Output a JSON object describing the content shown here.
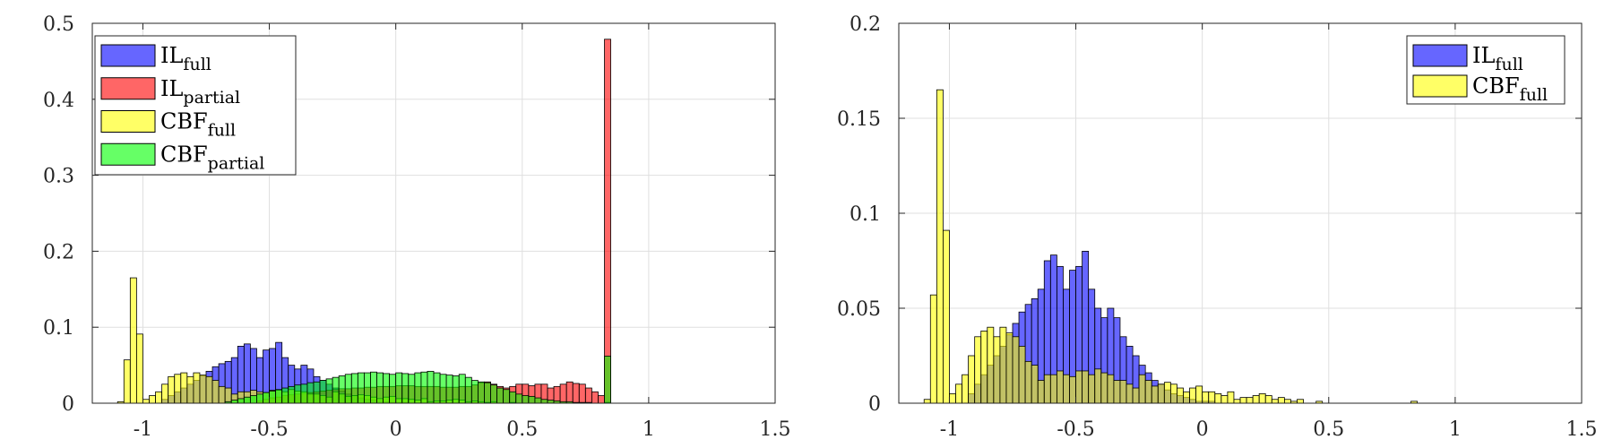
{
  "chart_data": [
    {
      "type": "bar",
      "title": "",
      "xlabel": "",
      "ylabel": "",
      "xlim": [
        -1.2,
        1.5
      ],
      "ylim": [
        0,
        0.5
      ],
      "grid": true,
      "legend_position": "top-left",
      "xticks": [
        -1,
        -0.5,
        0,
        0.5,
        1,
        1.5
      ],
      "xtick_labels": [
        "-1",
        "-0.5",
        "0",
        "0.5",
        "1",
        "1.5"
      ],
      "yticks": [
        0,
        0.1,
        0.2,
        0.3,
        0.4,
        0.5
      ],
      "ytick_labels": [
        "0",
        "0.1",
        "0.2",
        "0.3",
        "0.4",
        "0.5"
      ],
      "bin_start": -1.1,
      "bin_width": 0.025,
      "series": [
        {
          "name_main": "IL",
          "name_sub": "full",
          "color": "#0000ff",
          "values": [
            0,
            0,
            0,
            0,
            0,
            0,
            0,
            0.005,
            0.01,
            0.015,
            0.02,
            0.025,
            0.03,
            0.036,
            0.042,
            0.048,
            0.052,
            0.055,
            0.06,
            0.075,
            0.078,
            0.072,
            0.06,
            0.07,
            0.072,
            0.08,
            0.06,
            0.05,
            0.045,
            0.05,
            0.045,
            0.035,
            0.03,
            0.025,
            0.02,
            0.016,
            0.012,
            0.01,
            0.007,
            0.005,
            0.004,
            0.003,
            0.002,
            0.001,
            0.001,
            0.001,
            0,
            0,
            0,
            0,
            0,
            0,
            0,
            0,
            0,
            0,
            0,
            0,
            0,
            0,
            0,
            0,
            0,
            0,
            0,
            0,
            0,
            0,
            0,
            0,
            0,
            0,
            0,
            0,
            0,
            0,
            0
          ]
        },
        {
          "name_main": "IL",
          "name_sub": "partial",
          "color": "#ff0000",
          "values": [
            0,
            0,
            0,
            0,
            0,
            0,
            0,
            0,
            0,
            0,
            0,
            0,
            0,
            0,
            0,
            0,
            0,
            0,
            0,
            0,
            0,
            0,
            0.003,
            0.005,
            0.007,
            0.008,
            0.01,
            0.011,
            0.012,
            0.013,
            0.014,
            0.015,
            0.016,
            0.017,
            0.018,
            0.019,
            0.019,
            0.02,
            0.02,
            0.021,
            0.021,
            0.022,
            0.022,
            0.022,
            0.023,
            0.023,
            0.023,
            0.022,
            0.022,
            0.022,
            0.022,
            0.021,
            0.021,
            0.021,
            0.022,
            0.022,
            0.024,
            0.027,
            0.028,
            0.025,
            0.022,
            0.02,
            0.022,
            0.025,
            0.025,
            0.023,
            0.025,
            0.025,
            0.02,
            0.022,
            0.025,
            0.028,
            0.026,
            0.025,
            0.02,
            0.015,
            0.01,
            0.479
          ]
        },
        {
          "name_main": "CBF",
          "name_sub": "full",
          "color": "#ffff00",
          "values": [
            0.002,
            0.057,
            0.165,
            0.091,
            0.005,
            0.01,
            0.015,
            0.025,
            0.035,
            0.038,
            0.04,
            0.035,
            0.04,
            0.037,
            0.035,
            0.03,
            0.022,
            0.02,
            0.012,
            0.015,
            0.015,
            0.017,
            0.015,
            0.014,
            0.017,
            0.017,
            0.015,
            0.018,
            0.016,
            0.015,
            0.012,
            0.012,
            0.01,
            0.008,
            0.015,
            0.012,
            0.009,
            0.01,
            0.011,
            0.01,
            0.008,
            0.006,
            0.008,
            0.009,
            0.006,
            0.006,
            0.005,
            0.004,
            0.006,
            0.002,
            0.003,
            0.003,
            0.004,
            0.005,
            0.004,
            0.002,
            0.003,
            0.002,
            0.001,
            0.002,
            0,
            0,
            0.001,
            0,
            0,
            0,
            0,
            0,
            0,
            0,
            0,
            0,
            0,
            0,
            0,
            0,
            0,
            0.001
          ]
        },
        {
          "name_main": "CBF",
          "name_sub": "partial",
          "color": "#00ff00",
          "values": [
            0,
            0,
            0,
            0,
            0,
            0,
            0,
            0,
            0,
            0,
            0,
            0,
            0,
            0,
            0,
            0,
            0,
            0.002,
            0.004,
            0.006,
            0.008,
            0.01,
            0.012,
            0.014,
            0.016,
            0.018,
            0.02,
            0.022,
            0.024,
            0.025,
            0.027,
            0.028,
            0.03,
            0.032,
            0.034,
            0.036,
            0.038,
            0.039,
            0.04,
            0.04,
            0.041,
            0.04,
            0.039,
            0.038,
            0.04,
            0.039,
            0.038,
            0.04,
            0.041,
            0.042,
            0.04,
            0.038,
            0.037,
            0.036,
            0.038,
            0.034,
            0.03,
            0.028,
            0.027,
            0.024,
            0.02,
            0.018,
            0.015,
            0.012,
            0.01,
            0.009,
            0.007,
            0.005,
            0.004,
            0.003,
            0.002,
            0.002,
            0.001,
            0.001,
            0.001,
            0,
            0,
            0.062
          ]
        }
      ]
    },
    {
      "type": "bar",
      "title": "",
      "xlabel": "",
      "ylabel": "",
      "xlim": [
        -1.2,
        1.5
      ],
      "ylim": [
        0,
        0.2
      ],
      "grid": true,
      "legend_position": "top-right",
      "xticks": [
        -1,
        -0.5,
        0,
        0.5,
        1,
        1.5
      ],
      "xtick_labels": [
        "-1",
        "-0.5",
        "0",
        "0.5",
        "1",
        "1.5"
      ],
      "yticks": [
        0,
        0.05,
        0.1,
        0.15,
        0.2
      ],
      "ytick_labels": [
        "0",
        "0.05",
        "0.1",
        "0.15",
        "0.2"
      ],
      "bin_start": -1.1,
      "bin_width": 0.025,
      "series": [
        {
          "name_main": "IL",
          "name_sub": "full",
          "color": "#0000ff",
          "values": [
            0,
            0,
            0,
            0,
            0,
            0,
            0,
            0.005,
            0.01,
            0.015,
            0.02,
            0.025,
            0.03,
            0.036,
            0.042,
            0.048,
            0.052,
            0.055,
            0.06,
            0.075,
            0.078,
            0.072,
            0.06,
            0.07,
            0.072,
            0.08,
            0.06,
            0.05,
            0.045,
            0.05,
            0.045,
            0.035,
            0.03,
            0.025,
            0.02,
            0.016,
            0.012,
            0.01,
            0.007,
            0.005,
            0.004,
            0.003,
            0.002,
            0.001,
            0.001,
            0.001,
            0,
            0,
            0,
            0,
            0,
            0,
            0,
            0,
            0,
            0,
            0,
            0,
            0,
            0,
            0,
            0,
            0,
            0,
            0,
            0,
            0,
            0,
            0,
            0,
            0,
            0,
            0,
            0,
            0,
            0,
            0
          ]
        },
        {
          "name_main": "CBF",
          "name_sub": "full",
          "color": "#ffff00",
          "values": [
            0.002,
            0.057,
            0.165,
            0.091,
            0.005,
            0.01,
            0.015,
            0.025,
            0.035,
            0.038,
            0.04,
            0.035,
            0.04,
            0.037,
            0.035,
            0.03,
            0.022,
            0.02,
            0.012,
            0.015,
            0.015,
            0.017,
            0.015,
            0.014,
            0.017,
            0.017,
            0.015,
            0.018,
            0.016,
            0.015,
            0.012,
            0.012,
            0.01,
            0.008,
            0.015,
            0.012,
            0.009,
            0.01,
            0.011,
            0.01,
            0.008,
            0.006,
            0.008,
            0.009,
            0.006,
            0.006,
            0.005,
            0.004,
            0.006,
            0.002,
            0.003,
            0.003,
            0.004,
            0.005,
            0.004,
            0.002,
            0.003,
            0.002,
            0.001,
            0.002,
            0,
            0,
            0.001,
            0,
            0,
            0,
            0,
            0,
            0,
            0,
            0,
            0,
            0,
            0,
            0,
            0,
            0,
            0.001
          ]
        }
      ]
    }
  ]
}
